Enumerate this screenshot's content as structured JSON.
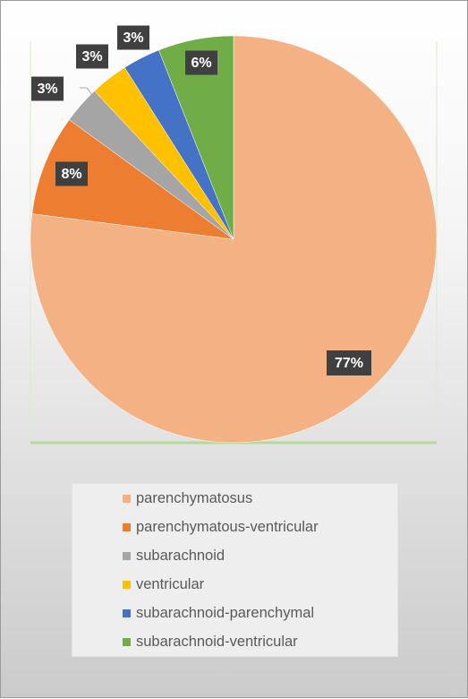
{
  "chart_data": {
    "type": "pie",
    "slices": [
      {
        "name": "parenchymatosus",
        "value": 77,
        "label": "77%",
        "color": "#F4B183"
      },
      {
        "name": "parenchymatous-ventricular",
        "value": 8,
        "label": "8%",
        "color": "#ED7D31"
      },
      {
        "name": "subarachnoid",
        "value": 3,
        "label": "3%",
        "color": "#A5A5A5"
      },
      {
        "name": "ventricular",
        "value": 3,
        "label": "3%",
        "color": "#FFC000"
      },
      {
        "name": "subarachnoid-parenchymal",
        "value": 3,
        "label": "3%",
        "color": "#4472C4"
      },
      {
        "name": "subarachnoid-ventricular",
        "value": 6,
        "label": "6%",
        "color": "#70AD47"
      }
    ],
    "legend_position": "bottom",
    "label_box_color": "#404040"
  }
}
